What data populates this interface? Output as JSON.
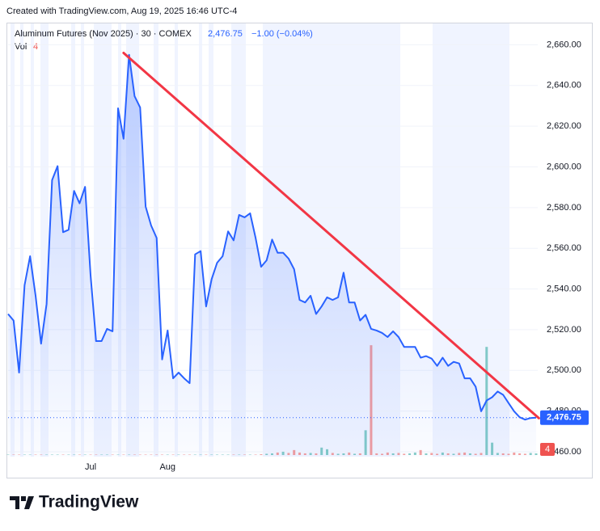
{
  "header": {
    "created": "Created with TradingView.com, Aug 19, 2025 16:46 UTC-4",
    "symbol": "Aluminum Futures (Nov 2025) · 30 · COMEX",
    "last": "2,476.75",
    "change": "−1.00 (−0.04%)",
    "vol_label": "Vol",
    "vol_value": "4",
    "logo": "TradingView"
  },
  "chart_data": {
    "type": "line",
    "color": "#2962ff",
    "grid": true,
    "categories": [
      null,
      null,
      null,
      null,
      null,
      null,
      null,
      null,
      null,
      null,
      null,
      null,
      null,
      null,
      null,
      "Jul",
      null,
      null,
      null,
      null,
      null,
      null,
      null,
      null,
      null,
      null,
      null,
      null,
      null,
      "Aug",
      null,
      null,
      null,
      null,
      null,
      null,
      null,
      null,
      null,
      null,
      null,
      null,
      null,
      null,
      null,
      null,
      null,
      null,
      null,
      null,
      null,
      null,
      null,
      null,
      null,
      null,
      null,
      null,
      null,
      null,
      null,
      null,
      null,
      null,
      null,
      null,
      null,
      null,
      null,
      null,
      null,
      null,
      null,
      null,
      null,
      null,
      null,
      null,
      null,
      null,
      null,
      null,
      null,
      null,
      null,
      null,
      null,
      null,
      null,
      null,
      null,
      null,
      null,
      null,
      null,
      null,
      null
    ],
    "values": [
      2527.7,
      2524.5,
      2498.9,
      2541.9,
      2556.1,
      2536.7,
      2513.1,
      2532.6,
      2593.5,
      2600.4,
      2567.9,
      2569.1,
      2588.2,
      2582.1,
      2590.2,
      2546.8,
      2514.4,
      2514.4,
      2520.4,
      2519.2,
      2628.8,
      2613.8,
      2655.1,
      2634.8,
      2629.2,
      2580.5,
      2571.2,
      2565.1,
      2505.4,
      2519.6,
      2496.1,
      2498.9,
      2496.1,
      2493.7,
      2557,
      2558.6,
      2531.4,
      2544.8,
      2552.9,
      2556.1,
      2568.3,
      2563.9,
      2576.4,
      2575.2,
      2577.2,
      2565.1,
      2550.9,
      2554.1,
      2564.3,
      2557.8,
      2557.8,
      2554.9,
      2549.7,
      2534.6,
      2533.4,
      2536.7,
      2527.7,
      2531.4,
      2535.9,
      2534.6,
      2535.9,
      2548,
      2533.4,
      2533.4,
      2524.5,
      2527.3,
      2520.4,
      2519.6,
      2518.4,
      2516.4,
      2519.2,
      2516.4,
      2511.5,
      2511.5,
      2511.5,
      2506.2,
      2507,
      2505.8,
      2502.2,
      2506.2,
      2502.2,
      2504.2,
      2503.4,
      2496.1,
      2496.1,
      2492,
      2479.9,
      2485.2,
      2486.8,
      2489.6,
      2488,
      2483.9,
      2479.9,
      2477,
      2475.8,
      2476.6,
      2476.75
    ],
    "ylim": [
      2457.6,
      2670.5
    ],
    "yticks": [
      {
        "value": 2460,
        "label": "2,460.00"
      },
      {
        "value": 2480,
        "label": "2,480.00"
      },
      {
        "value": 2500,
        "label": "2,500.00"
      },
      {
        "value": 2520,
        "label": "2,520.00"
      },
      {
        "value": 2540,
        "label": "2,540.00"
      },
      {
        "value": 2560,
        "label": "2,560.00"
      },
      {
        "value": 2580,
        "label": "2,580.00"
      },
      {
        "value": 2600,
        "label": "2,600.00"
      },
      {
        "value": 2620,
        "label": "2,620.00"
      },
      {
        "value": 2640,
        "label": "2,640.00"
      },
      {
        "value": 2660,
        "label": "2,660.00"
      }
    ],
    "trendline": {
      "color": "#f23645",
      "x": [
        21,
        96.5
      ],
      "values": [
        2656,
        2476.5
      ]
    },
    "volume": {
      "up_color": "#26a69a",
      "down_color": "#ef5350",
      "ylim": [
        0,
        280
      ],
      "values": [
        1,
        1,
        1,
        1,
        1,
        1,
        1,
        1,
        1,
        1,
        1,
        1,
        1,
        1,
        1,
        1,
        1,
        1,
        1,
        1,
        1,
        1,
        1,
        1,
        1,
        1,
        1,
        1,
        1,
        1,
        1,
        1,
        1,
        1,
        1,
        1,
        1,
        1,
        1,
        1,
        1,
        1,
        1,
        1,
        1,
        1,
        2,
        3,
        4,
        6,
        8,
        5,
        12,
        6,
        4,
        5,
        4,
        18,
        14,
        5,
        3,
        4,
        6,
        3,
        4,
        60,
        266,
        4,
        3,
        6,
        4,
        5,
        3,
        4,
        6,
        12,
        4,
        5,
        3,
        6,
        4,
        3,
        5,
        6,
        4,
        3,
        5,
        262,
        30,
        5,
        4,
        3,
        6,
        4,
        3,
        5,
        4
      ]
    }
  }
}
